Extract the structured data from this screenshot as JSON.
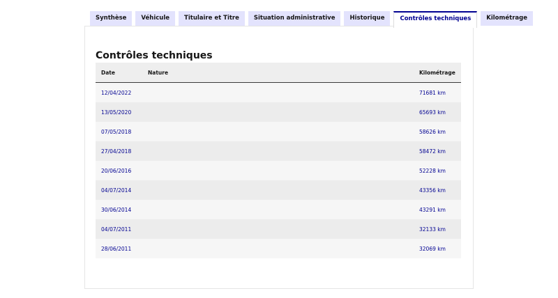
{
  "tabs": [
    {
      "label": "Synthèse"
    },
    {
      "label": "Véhicule"
    },
    {
      "label": "Titulaire et Titre"
    },
    {
      "label": "Situation administrative"
    },
    {
      "label": "Historique"
    },
    {
      "label": "Contrôles techniques",
      "active": true
    },
    {
      "label": "Kilométrage"
    }
  ],
  "section": {
    "title": "Contrôles techniques"
  },
  "table": {
    "headers": {
      "date": "Date",
      "nature": "Nature",
      "km": "Kilométrage"
    },
    "rows": [
      {
        "date": "12/04/2022",
        "km": "71681 km"
      },
      {
        "date": "13/05/2020",
        "km": "65693 km"
      },
      {
        "date": "07/05/2018",
        "km": "58626 km"
      },
      {
        "date": "27/04/2018",
        "km": "58472 km"
      },
      {
        "date": "20/06/2016",
        "km": "52228 km"
      },
      {
        "date": "04/07/2014",
        "km": "43356 km"
      },
      {
        "date": "30/06/2014",
        "km": "43291 km"
      },
      {
        "date": "04/07/2011",
        "km": "32133 km"
      },
      {
        "date": "28/06/2011",
        "km": "32069 km"
      }
    ]
  },
  "colors": {
    "accent": "#000091",
    "tab_bg": "#e3e3fd"
  }
}
